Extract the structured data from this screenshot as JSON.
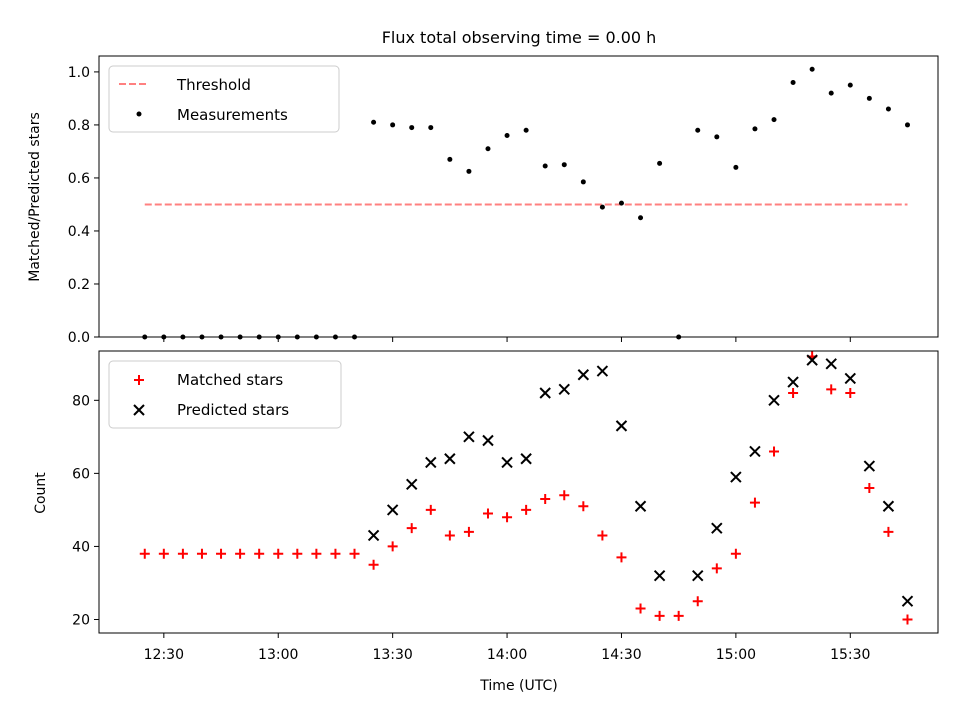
{
  "chart_data": [
    {
      "type": "scatter",
      "title": "Flux total observing time = 0.00 h",
      "xlabel": "",
      "ylabel": "Matched/Predicted stars",
      "ylim": [
        0,
        1.06
      ],
      "yticks": [
        "0.0",
        "0.2",
        "0.4",
        "0.6",
        "0.8",
        "1.0"
      ],
      "legend_position": "top-left",
      "threshold": {
        "name": "Threshold",
        "value": 0.5,
        "x_start": "12:25",
        "x_end": "15:45",
        "color": "#ff8080",
        "style": "dashed"
      },
      "series": [
        {
          "name": "Measurements",
          "color": "#000000",
          "marker": "dot",
          "x": [
            "12:25",
            "12:30",
            "12:35",
            "12:40",
            "12:45",
            "12:50",
            "12:55",
            "13:00",
            "13:05",
            "13:10",
            "13:15",
            "13:20",
            "13:25",
            "13:30",
            "13:35",
            "13:40",
            "13:45",
            "13:50",
            "13:55",
            "14:00",
            "14:05",
            "14:10",
            "14:15",
            "14:20",
            "14:25",
            "14:30",
            "14:35",
            "14:40",
            "14:45",
            "14:50",
            "14:55",
            "15:00",
            "15:05",
            "15:10",
            "15:15",
            "15:20",
            "15:25",
            "15:30",
            "15:35",
            "15:40",
            "15:45"
          ],
          "values": [
            0.0,
            0.0,
            0.0,
            0.0,
            0.0,
            0.0,
            0.0,
            0.0,
            0.0,
            0.0,
            0.0,
            0.0,
            0.81,
            0.8,
            0.79,
            0.79,
            0.67,
            0.625,
            0.71,
            0.76,
            0.78,
            0.645,
            0.65,
            0.585,
            0.49,
            0.505,
            0.45,
            0.655,
            0.0,
            0.78,
            0.755,
            0.64,
            0.785,
            0.82,
            0.96,
            1.01,
            0.92,
            0.95,
            0.9,
            0.86,
            0.8
          ]
        }
      ]
    },
    {
      "type": "scatter",
      "title": "",
      "xlabel": "Time (UTC)",
      "ylabel": "Count",
      "ylim": [
        16.3,
        93.5
      ],
      "yticks": [
        "20",
        "40",
        "60",
        "80"
      ],
      "xlim": [
        "12:13",
        "15:53"
      ],
      "xticks": [
        "12:30",
        "13:00",
        "13:30",
        "14:00",
        "14:30",
        "15:00",
        "15:30"
      ],
      "legend_position": "top-left",
      "series": [
        {
          "name": "Matched stars",
          "color": "#ff0000",
          "marker": "plus",
          "x": [
            "12:25",
            "12:30",
            "12:35",
            "12:40",
            "12:45",
            "12:50",
            "12:55",
            "13:00",
            "13:05",
            "13:10",
            "13:15",
            "13:20",
            "13:25",
            "13:30",
            "13:35",
            "13:40",
            "13:45",
            "13:50",
            "13:55",
            "14:00",
            "14:05",
            "14:10",
            "14:15",
            "14:20",
            "14:25",
            "14:30",
            "14:35",
            "14:40",
            "14:45",
            "14:50",
            "14:55",
            "15:00",
            "15:05",
            "15:10",
            "15:15",
            "15:20",
            "15:25",
            "15:30",
            "15:35",
            "15:40",
            "15:45"
          ],
          "values": [
            38,
            38,
            38,
            38,
            38,
            38,
            38,
            38,
            38,
            38,
            38,
            38,
            35,
            40,
            45,
            50,
            43,
            44,
            49,
            48,
            50,
            53,
            54,
            51,
            43,
            37,
            23,
            21,
            21,
            25,
            34,
            38,
            52,
            66,
            82,
            92,
            83,
            82,
            56,
            44,
            20
          ]
        },
        {
          "name": "Predicted stars",
          "color": "#000000",
          "marker": "x",
          "x": [
            "13:25",
            "13:30",
            "13:35",
            "13:40",
            "13:45",
            "13:50",
            "13:55",
            "14:00",
            "14:05",
            "14:10",
            "14:15",
            "14:20",
            "14:25",
            "14:30",
            "14:35",
            "14:40",
            "14:50",
            "14:55",
            "15:00",
            "15:05",
            "15:10",
            "15:15",
            "15:20",
            "15:25",
            "15:30",
            "15:35",
            "15:40",
            "15:45"
          ],
          "values": [
            43,
            50,
            57,
            63,
            64,
            70,
            69,
            63,
            64,
            82,
            83,
            87,
            88,
            73,
            51,
            32,
            32,
            45,
            59,
            66,
            80,
            85,
            91,
            90,
            86,
            62,
            51,
            25
          ]
        }
      ]
    }
  ]
}
